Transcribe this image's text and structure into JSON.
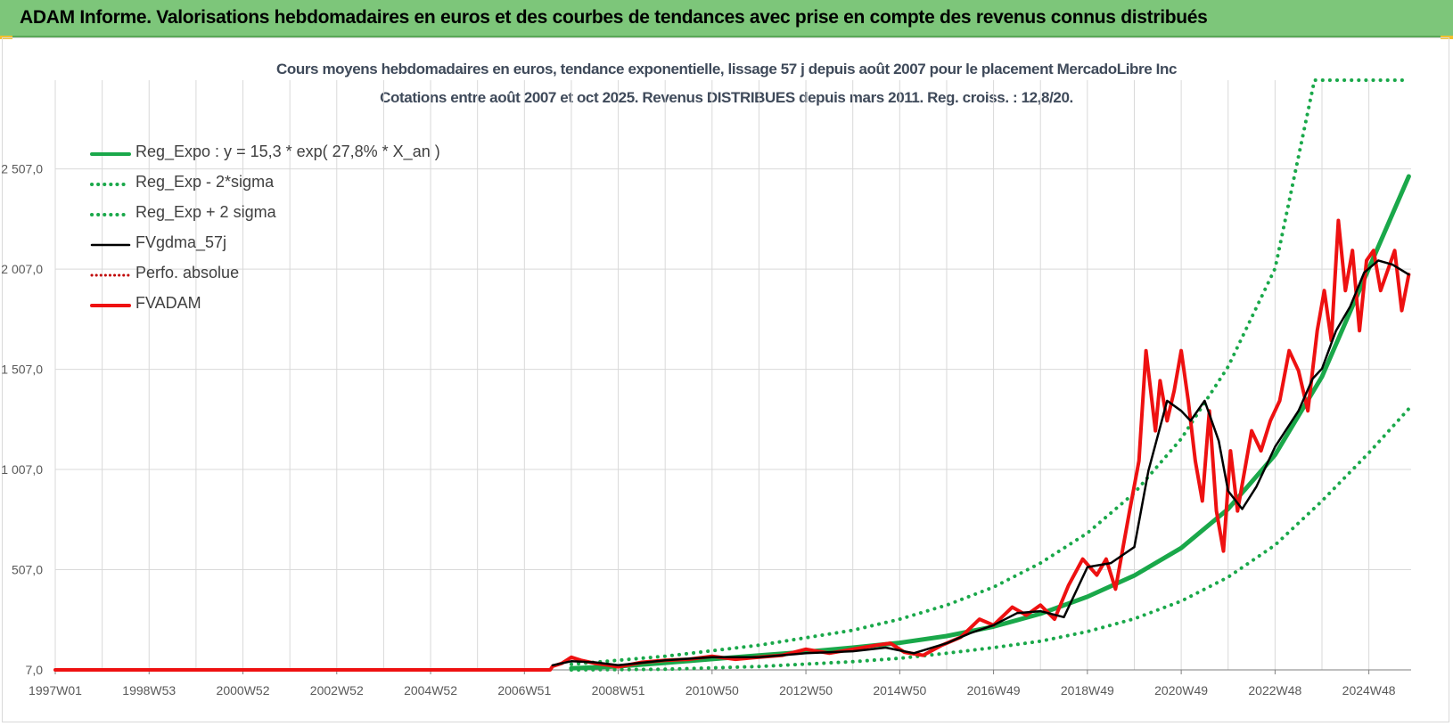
{
  "banner": {
    "title": "ADAM Informe. Valorisations hebdomadaires en euros et des courbes de tendances avec prise en compte des revenus connus distribués"
  },
  "colors": {
    "banner_bg": "#7dc67a",
    "reg_expo": "#1aa84a",
    "sigma": "#1aa84a",
    "fvgdma": "#000000",
    "perfo": "#c00000",
    "fvadam": "#ee1111",
    "grid": "#d9d9d9"
  },
  "chart_data": {
    "type": "line",
    "title": "Cours moyens hebdomadaires en euros, tendance exponentielle, lissage 57 j depuis août 2007 pour le placement MercadoLibre Inc",
    "subtitle": "Cotations entre août 2007 et oct 2025.  Revenus DISTRIBUES depuis mars 2011. Reg. croiss. : 12,8/20.",
    "xlabel": "",
    "ylabel": "",
    "xlim": [
      1997.0,
      2025.9
    ],
    "ylim": [
      7,
      2950
    ],
    "y_ticks": [
      7,
      507,
      1007,
      1507,
      2007,
      2507
    ],
    "y_tick_labels": [
      "7,0",
      "507,0",
      "1 007,0",
      "1 507,0",
      "2 007,0",
      "2 507,0"
    ],
    "x_ticks": [
      1997.0,
      1999.0,
      2001.0,
      2003.0,
      2005.0,
      2007.0,
      2009.0,
      2011.0,
      2013.0,
      2015.0,
      2017.0,
      2019.0,
      2021.0,
      2023.0,
      2025.0
    ],
    "x_tick_labels": [
      "1997W01",
      "1998W53",
      "2000W52",
      "2002W52",
      "2004W52",
      "2006W51",
      "2008W51",
      "2010W50",
      "2012W50",
      "2014W50",
      "2016W49",
      "2018W49",
      "2020W49",
      "2022W48",
      "2024W48"
    ],
    "grid": true,
    "legend_position": "top-left",
    "series": [
      {
        "name": "Reg_Expo : y = 15,3 * exp( 27,8% *  X_an )",
        "style": "solid",
        "x": [
          2008.0,
          2009.0,
          2010.0,
          2011.0,
          2012.0,
          2013.0,
          2014.0,
          2015.0,
          2016.0,
          2017.0,
          2018.0,
          2019.0,
          2020.0,
          2021.0,
          2022.0,
          2023.0,
          2024.0,
          2025.0,
          2025.85
        ],
        "y": [
          15,
          25,
          42,
          61,
          79,
          97,
          118,
          142,
          176,
          223,
          287,
          372,
          478,
          615,
          810,
          1080,
          1470,
          2010,
          2470
        ]
      },
      {
        "name": "Reg_Exp - 2*sigma",
        "style": "dotted",
        "x": [
          2008.0,
          2010.0,
          2012.0,
          2014.0,
          2015.0,
          2016.0,
          2017.0,
          2018.0,
          2019.0,
          2020.0,
          2021.0,
          2022.0,
          2023.0,
          2024.0,
          2025.0,
          2025.85
        ],
        "y": [
          7,
          10,
          24,
          48,
          65,
          90,
          118,
          150,
          198,
          262,
          350,
          470,
          630,
          850,
          1090,
          1310
        ]
      },
      {
        "name": "Reg_Exp + 2 sigma",
        "style": "dotted",
        "x": [
          2008.0,
          2010.0,
          2012.0,
          2014.0,
          2015.0,
          2016.0,
          2017.0,
          2018.0,
          2019.0,
          2020.0,
          2021.0,
          2022.0,
          2023.0,
          2023.84,
          2025.85
        ],
        "y": [
          35,
          75,
          130,
          205,
          260,
          330,
          420,
          540,
          690,
          890,
          1160,
          1520,
          2010,
          2950,
          2950
        ]
      },
      {
        "name": "FVgdma_57j",
        "style": "solid",
        "x": [
          2007.6,
          2008.0,
          2008.5,
          2009.0,
          2010.0,
          2011.0,
          2012.0,
          2013.0,
          2014.0,
          2014.7,
          2015.3,
          2016.0,
          2016.5,
          2017.0,
          2017.5,
          2018.0,
          2018.5,
          2019.0,
          2019.5,
          2020.0,
          2020.3,
          2020.7,
          2021.0,
          2021.2,
          2021.5,
          2021.8,
          2022.0,
          2022.3,
          2022.6,
          2023.0,
          2023.5,
          2023.8,
          2024.0,
          2024.3,
          2024.6,
          2024.9,
          2025.2,
          2025.5,
          2025.85
        ],
        "y": [
          30,
          50,
          45,
          30,
          55,
          70,
          70,
          90,
          100,
          118,
          90,
          140,
          190,
          230,
          290,
          300,
          270,
          520,
          540,
          620,
          1000,
          1350,
          1300,
          1250,
          1350,
          1150,
          900,
          810,
          920,
          1120,
          1300,
          1460,
          1510,
          1700,
          1820,
          1990,
          2050,
          2030,
          1980
        ]
      },
      {
        "name": "Perfo. absolue",
        "style": "dotted",
        "x": [],
        "y": []
      },
      {
        "name": "FVADAM",
        "style": "solid",
        "x": [
          1997.0,
          2007.55,
          2007.6,
          2007.8,
          2008.0,
          2008.2,
          2008.5,
          2008.8,
          2009.0,
          2009.5,
          2010.0,
          2010.5,
          2011.0,
          2011.5,
          2012.0,
          2012.5,
          2013.0,
          2013.5,
          2014.0,
          2014.5,
          2014.8,
          2015.1,
          2015.5,
          2015.9,
          2016.3,
          2016.7,
          2017.0,
          2017.4,
          2017.7,
          2018.0,
          2018.3,
          2018.6,
          2018.9,
          2019.2,
          2019.4,
          2019.6,
          2019.9,
          2020.1,
          2020.25,
          2020.45,
          2020.55,
          2020.7,
          2020.85,
          2021.0,
          2021.15,
          2021.3,
          2021.45,
          2021.6,
          2021.75,
          2021.9,
          2022.05,
          2022.2,
          2022.35,
          2022.5,
          2022.7,
          2022.9,
          2023.1,
          2023.3,
          2023.5,
          2023.7,
          2023.9,
          2024.05,
          2024.2,
          2024.35,
          2024.5,
          2024.65,
          2024.8,
          2024.95,
          2025.1,
          2025.25,
          2025.4,
          2025.55,
          2025.7,
          2025.85
        ],
        "y": [
          7,
          7,
          25,
          40,
          70,
          55,
          40,
          30,
          22,
          45,
          55,
          60,
          75,
          60,
          70,
          80,
          110,
          90,
          110,
          130,
          140,
          95,
          80,
          130,
          170,
          260,
          230,
          320,
          280,
          330,
          260,
          430,
          560,
          480,
          560,
          410,
          800,
          1050,
          1600,
          1200,
          1450,
          1250,
          1400,
          1600,
          1350,
          1050,
          850,
          1300,
          800,
          600,
          1100,
          800,
          1000,
          1200,
          1100,
          1250,
          1350,
          1600,
          1500,
          1300,
          1700,
          1900,
          1650,
          2250,
          1900,
          2100,
          1700,
          2050,
          2100,
          1900,
          2000,
          2100,
          1800,
          1980
        ]
      }
    ]
  }
}
